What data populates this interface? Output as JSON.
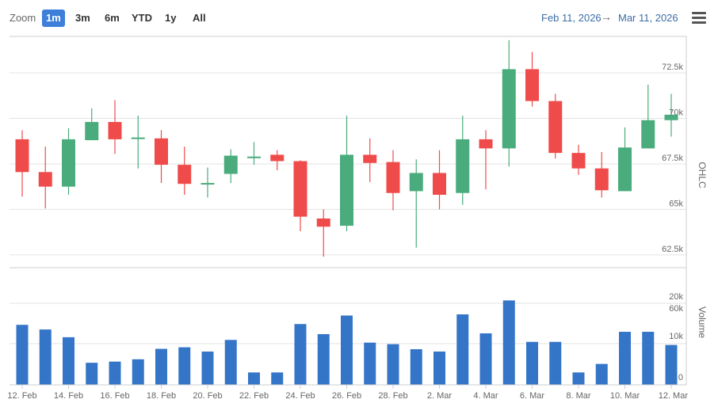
{
  "toolbar": {
    "zoom_label": "Zoom",
    "buttons": [
      "1m",
      "3m",
      "6m",
      "YTD",
      "1y",
      "All"
    ],
    "active_button": "1m",
    "range_from": "Feb 11, 2026",
    "range_arrow": "→",
    "range_to": "Mar 11, 2026",
    "menu_icon": "hamburger-menu-icon"
  },
  "colors": {
    "up": "#4aac7c",
    "down": "#f04b4b",
    "volume": "#3475c8",
    "grid": "#e3e3e3",
    "axis_text": "#666666",
    "accent": "#3d7fd9"
  },
  "chart_data": [
    {
      "type": "candlestick",
      "ylabel": "OHLC",
      "ylim": [
        61800,
        74500
      ],
      "yticks": [
        62500,
        65000,
        67500,
        70000,
        72500
      ],
      "ytick_labels": [
        "62.5k",
        "65k",
        "67.5k",
        "70k",
        "72.5k"
      ],
      "grid": true,
      "x": [
        "12 Feb",
        "13 Feb",
        "14 Feb",
        "15 Feb",
        "16 Feb",
        "17 Feb",
        "18 Feb",
        "19 Feb",
        "20 Feb",
        "21 Feb",
        "22 Feb",
        "23 Feb",
        "24 Feb",
        "25 Feb",
        "26 Feb",
        "27 Feb",
        "28 Feb",
        "1 Mar",
        "2 Mar",
        "3 Mar",
        "4 Mar",
        "5 Mar",
        "6 Mar",
        "7 Mar",
        "8 Mar",
        "9 Mar",
        "10 Mar",
        "11 Mar",
        "12 Mar"
      ],
      "open": [
        68850,
        67050,
        66250,
        68800,
        69800,
        68900,
        68900,
        67450,
        66400,
        66950,
        67900,
        68000,
        67650,
        64500,
        64100,
        68000,
        67600,
        66000,
        67000,
        65900,
        68850,
        68350,
        72700,
        70950,
        68100,
        67250,
        66000,
        68350,
        69900
      ],
      "high": [
        69350,
        68450,
        69450,
        70550,
        71000,
        70150,
        69350,
        68450,
        67300,
        68300,
        68700,
        68250,
        67700,
        65000,
        70150,
        68900,
        68250,
        67750,
        68250,
        70150,
        69350,
        74300,
        73650,
        71350,
        68550,
        68150,
        69500,
        71850,
        71350
      ],
      "low": [
        65700,
        65050,
        65800,
        68800,
        68050,
        67250,
        66450,
        65800,
        65650,
        66450,
        67450,
        67150,
        63800,
        62400,
        63800,
        66500,
        64950,
        62900,
        65000,
        65250,
        66100,
        67350,
        70650,
        67800,
        66900,
        65650,
        66000,
        68350,
        69000
      ],
      "close": [
        67050,
        66250,
        68850,
        69800,
        68850,
        68950,
        67450,
        66400,
        66450,
        67950,
        67900,
        67650,
        64600,
        64050,
        68000,
        67550,
        65900,
        67000,
        65800,
        68850,
        68350,
        72700,
        70950,
        68100,
        67250,
        66050,
        68400,
        69900,
        70200
      ]
    },
    {
      "type": "bar",
      "ylabel": "Volume",
      "ytick_labels": [
        "0",
        "10k",
        "20k",
        "60k"
      ],
      "grid": true,
      "x": [
        "12 Feb",
        "13 Feb",
        "14 Feb",
        "15 Feb",
        "16 Feb",
        "17 Feb",
        "18 Feb",
        "19 Feb",
        "20 Feb",
        "21 Feb",
        "22 Feb",
        "23 Feb",
        "24 Feb",
        "25 Feb",
        "26 Feb",
        "27 Feb",
        "28 Feb",
        "1 Mar",
        "2 Mar",
        "3 Mar",
        "4 Mar",
        "5 Mar",
        "6 Mar",
        "7 Mar",
        "8 Mar",
        "9 Mar",
        "10 Mar",
        "11 Mar",
        "12 Mar"
      ],
      "values": [
        15500,
        14300,
        12300,
        5700,
        6000,
        6600,
        9300,
        9700,
        8600,
        11600,
        3200,
        3200,
        15700,
        13100,
        17900,
        10900,
        10500,
        9200,
        8600,
        18200,
        13300,
        21800,
        11100,
        11100,
        3200,
        5400,
        13700,
        13700,
        10300
      ]
    }
  ],
  "xaxis": {
    "tick_labels": [
      "12. Feb",
      "14. Feb",
      "16. Feb",
      "18. Feb",
      "20. Feb",
      "22. Feb",
      "24. Feb",
      "26. Feb",
      "28. Feb",
      "2. Mar",
      "4. Mar",
      "6. Mar",
      "8. Mar",
      "10. Mar",
      "12. Mar"
    ]
  }
}
